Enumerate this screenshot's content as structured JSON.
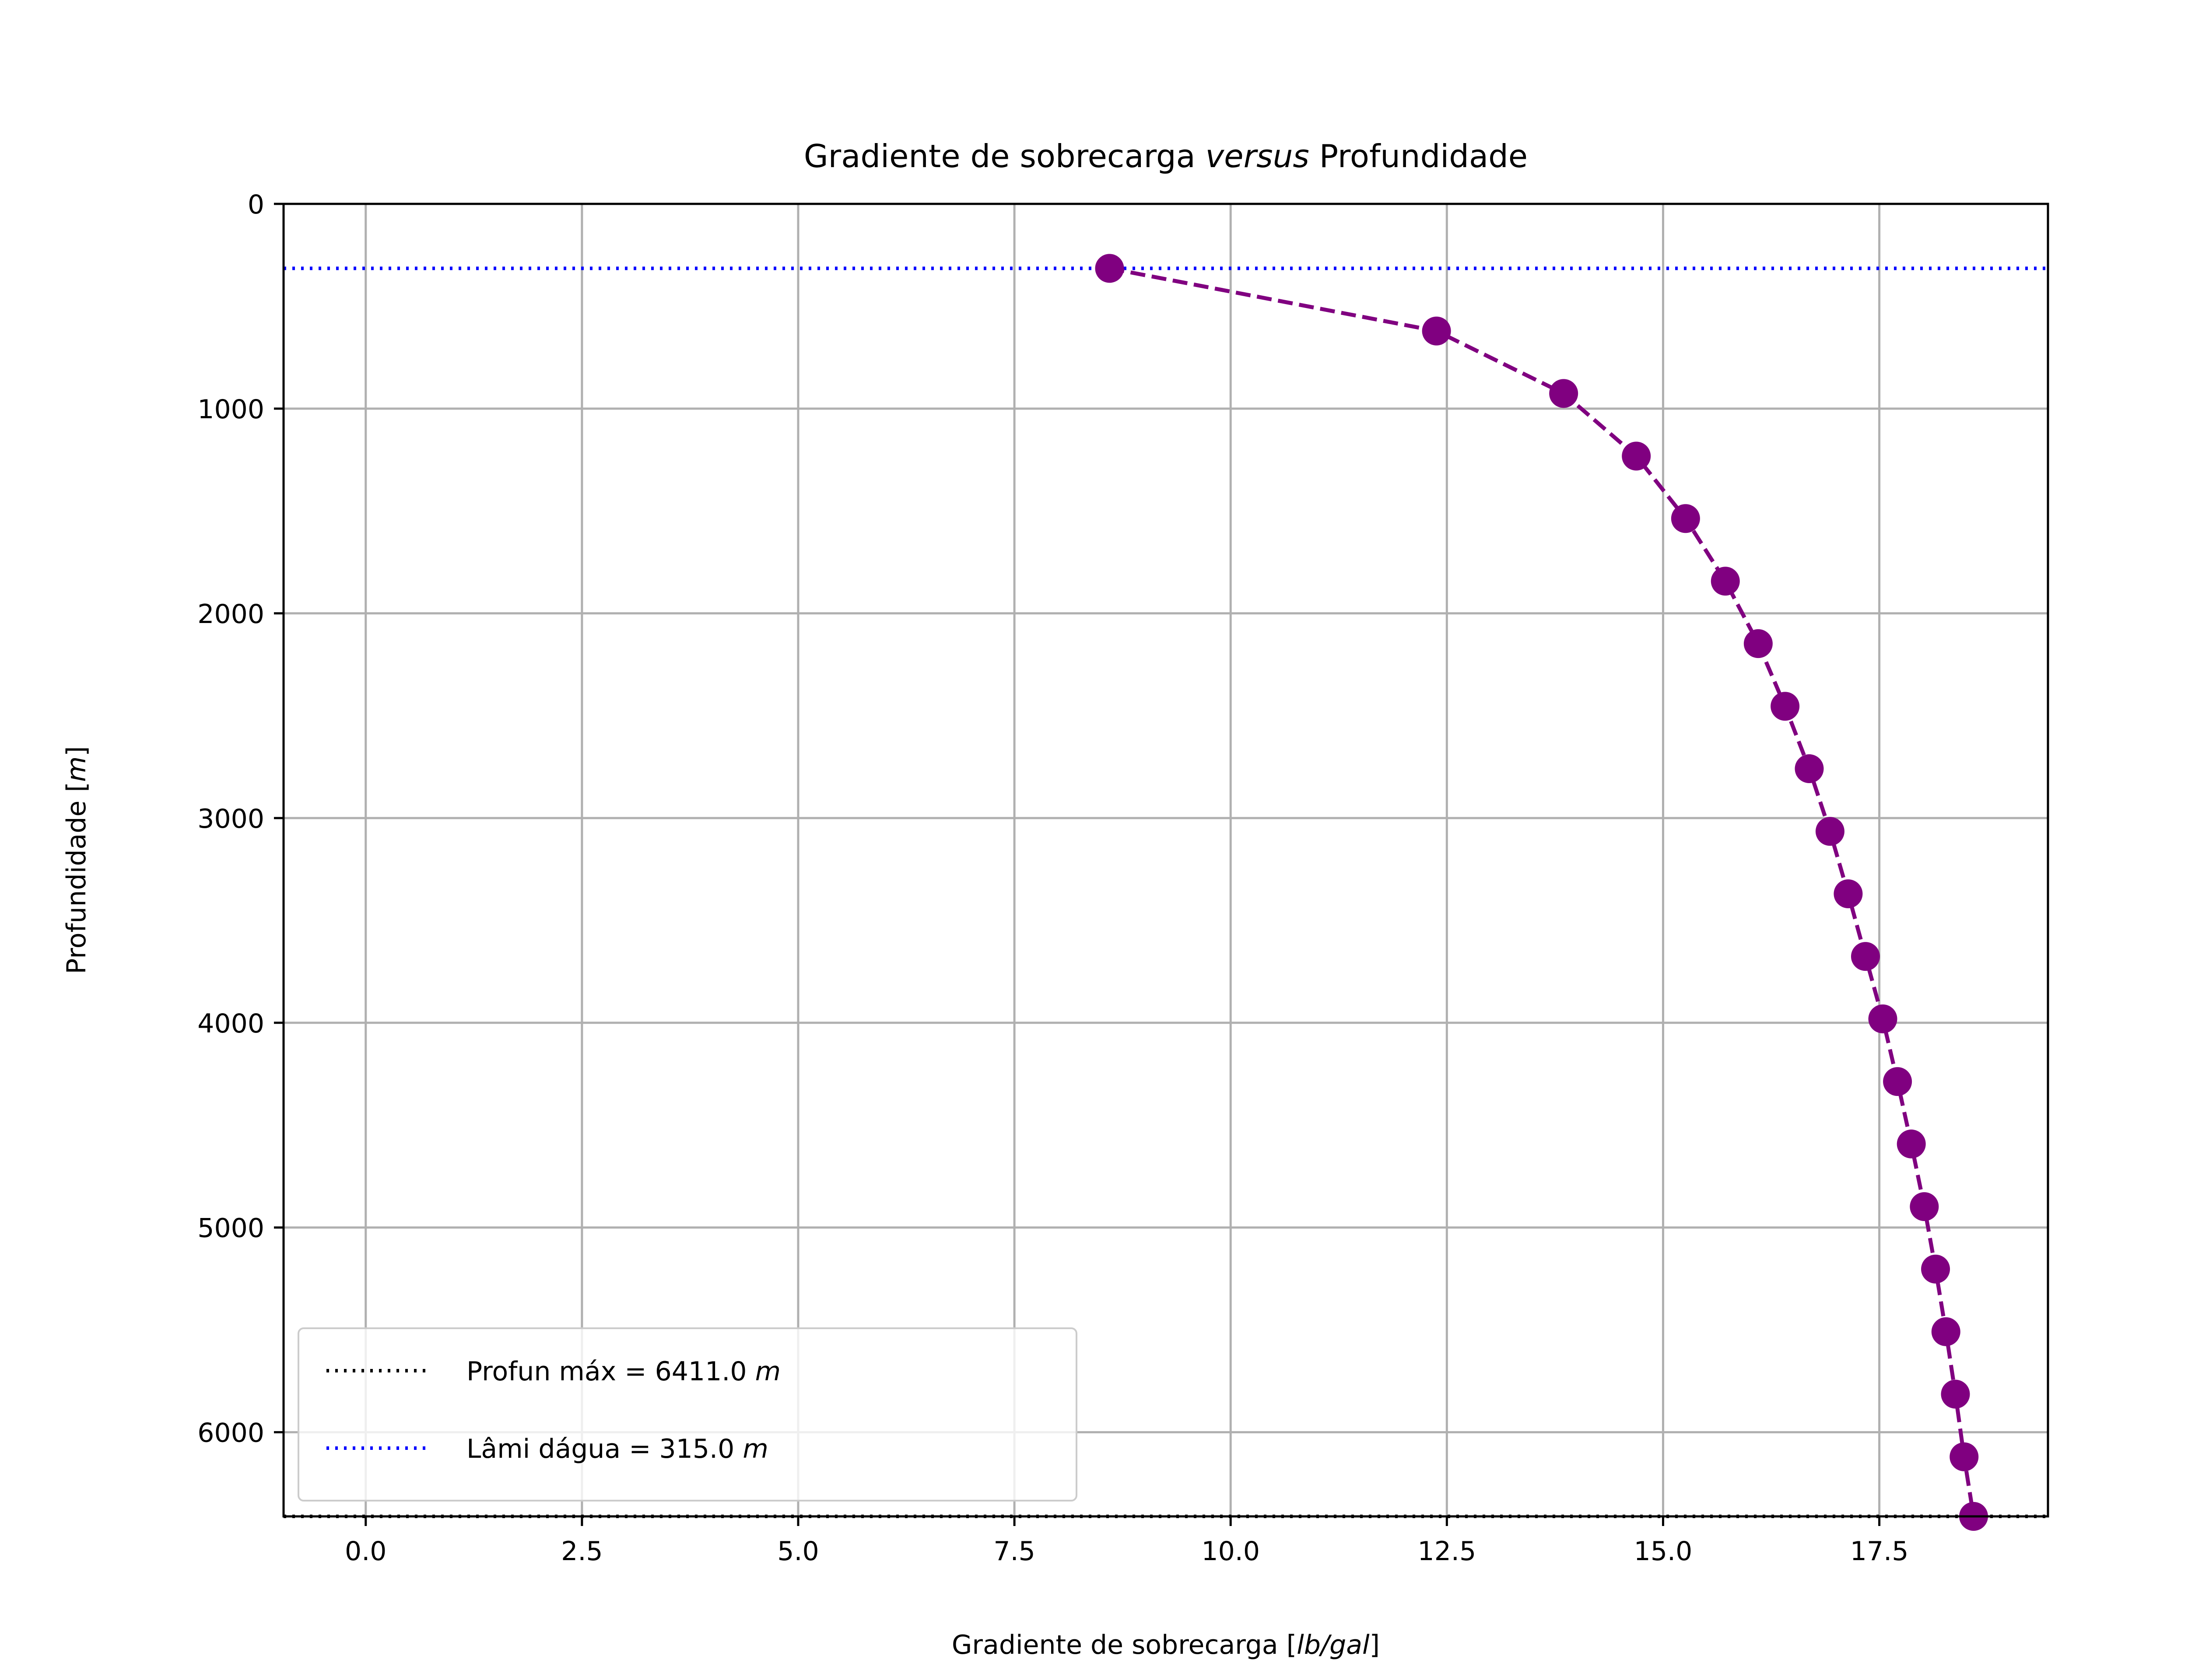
{
  "chart_data": {
    "type": "line",
    "title_parts": [
      "Gradiente de sobrecarga ",
      "versus",
      " Profundidade"
    ],
    "xlabel_parts": [
      "Gradiente de sobrecarga [",
      "lb/gal",
      "]"
    ],
    "ylabel_parts": [
      "Profundidade [",
      "m",
      "]"
    ],
    "xlim": [
      -0.95,
      19.45
    ],
    "ylim": [
      6411,
      0
    ],
    "y_inverted": true,
    "x_ticks": [
      0.0,
      2.5,
      5.0,
      7.5,
      10.0,
      12.5,
      15.0,
      17.5
    ],
    "x_tick_labels": [
      "0.0",
      "2.5",
      "5.0",
      "7.5",
      "10.0",
      "12.5",
      "15.0",
      "17.5"
    ],
    "y_ticks": [
      0,
      1000,
      2000,
      3000,
      4000,
      5000,
      6000
    ],
    "y_tick_labels": [
      "0",
      "1000",
      "2000",
      "3000",
      "4000",
      "5000",
      "6000"
    ],
    "grid": true,
    "legend_position": "lower-left",
    "series": [
      {
        "style": "dashed-line-with-circle-markers",
        "color": "#800080",
        "points": [
          {
            "x": 8.6,
            "y": 315
          },
          {
            "x": 12.38,
            "y": 621
          },
          {
            "x": 13.85,
            "y": 926
          },
          {
            "x": 14.69,
            "y": 1232
          },
          {
            "x": 15.26,
            "y": 1537
          },
          {
            "x": 15.72,
            "y": 1843
          },
          {
            "x": 16.1,
            "y": 2148
          },
          {
            "x": 16.41,
            "y": 2454
          },
          {
            "x": 16.69,
            "y": 2759
          },
          {
            "x": 16.93,
            "y": 3065
          },
          {
            "x": 17.14,
            "y": 3370
          },
          {
            "x": 17.34,
            "y": 3676
          },
          {
            "x": 17.54,
            "y": 3981
          },
          {
            "x": 17.71,
            "y": 4287
          },
          {
            "x": 17.87,
            "y": 4592
          },
          {
            "x": 18.02,
            "y": 4898
          },
          {
            "x": 18.15,
            "y": 5203
          },
          {
            "x": 18.27,
            "y": 5509
          },
          {
            "x": 18.38,
            "y": 5814
          },
          {
            "x": 18.48,
            "y": 6120
          },
          {
            "x": 18.59,
            "y": 6411
          }
        ]
      }
    ],
    "reference_lines": [
      {
        "axis": "y",
        "value": 6411.0,
        "color": "#000000",
        "style": "dotted",
        "label_parts": [
          "Profun máx = 6411.0 ",
          "m"
        ]
      },
      {
        "axis": "y",
        "value": 315.0,
        "color": "#0000ff",
        "style": "dotted",
        "label_parts": [
          "Lâmi dágua = 315.0 ",
          "m"
        ]
      }
    ]
  }
}
